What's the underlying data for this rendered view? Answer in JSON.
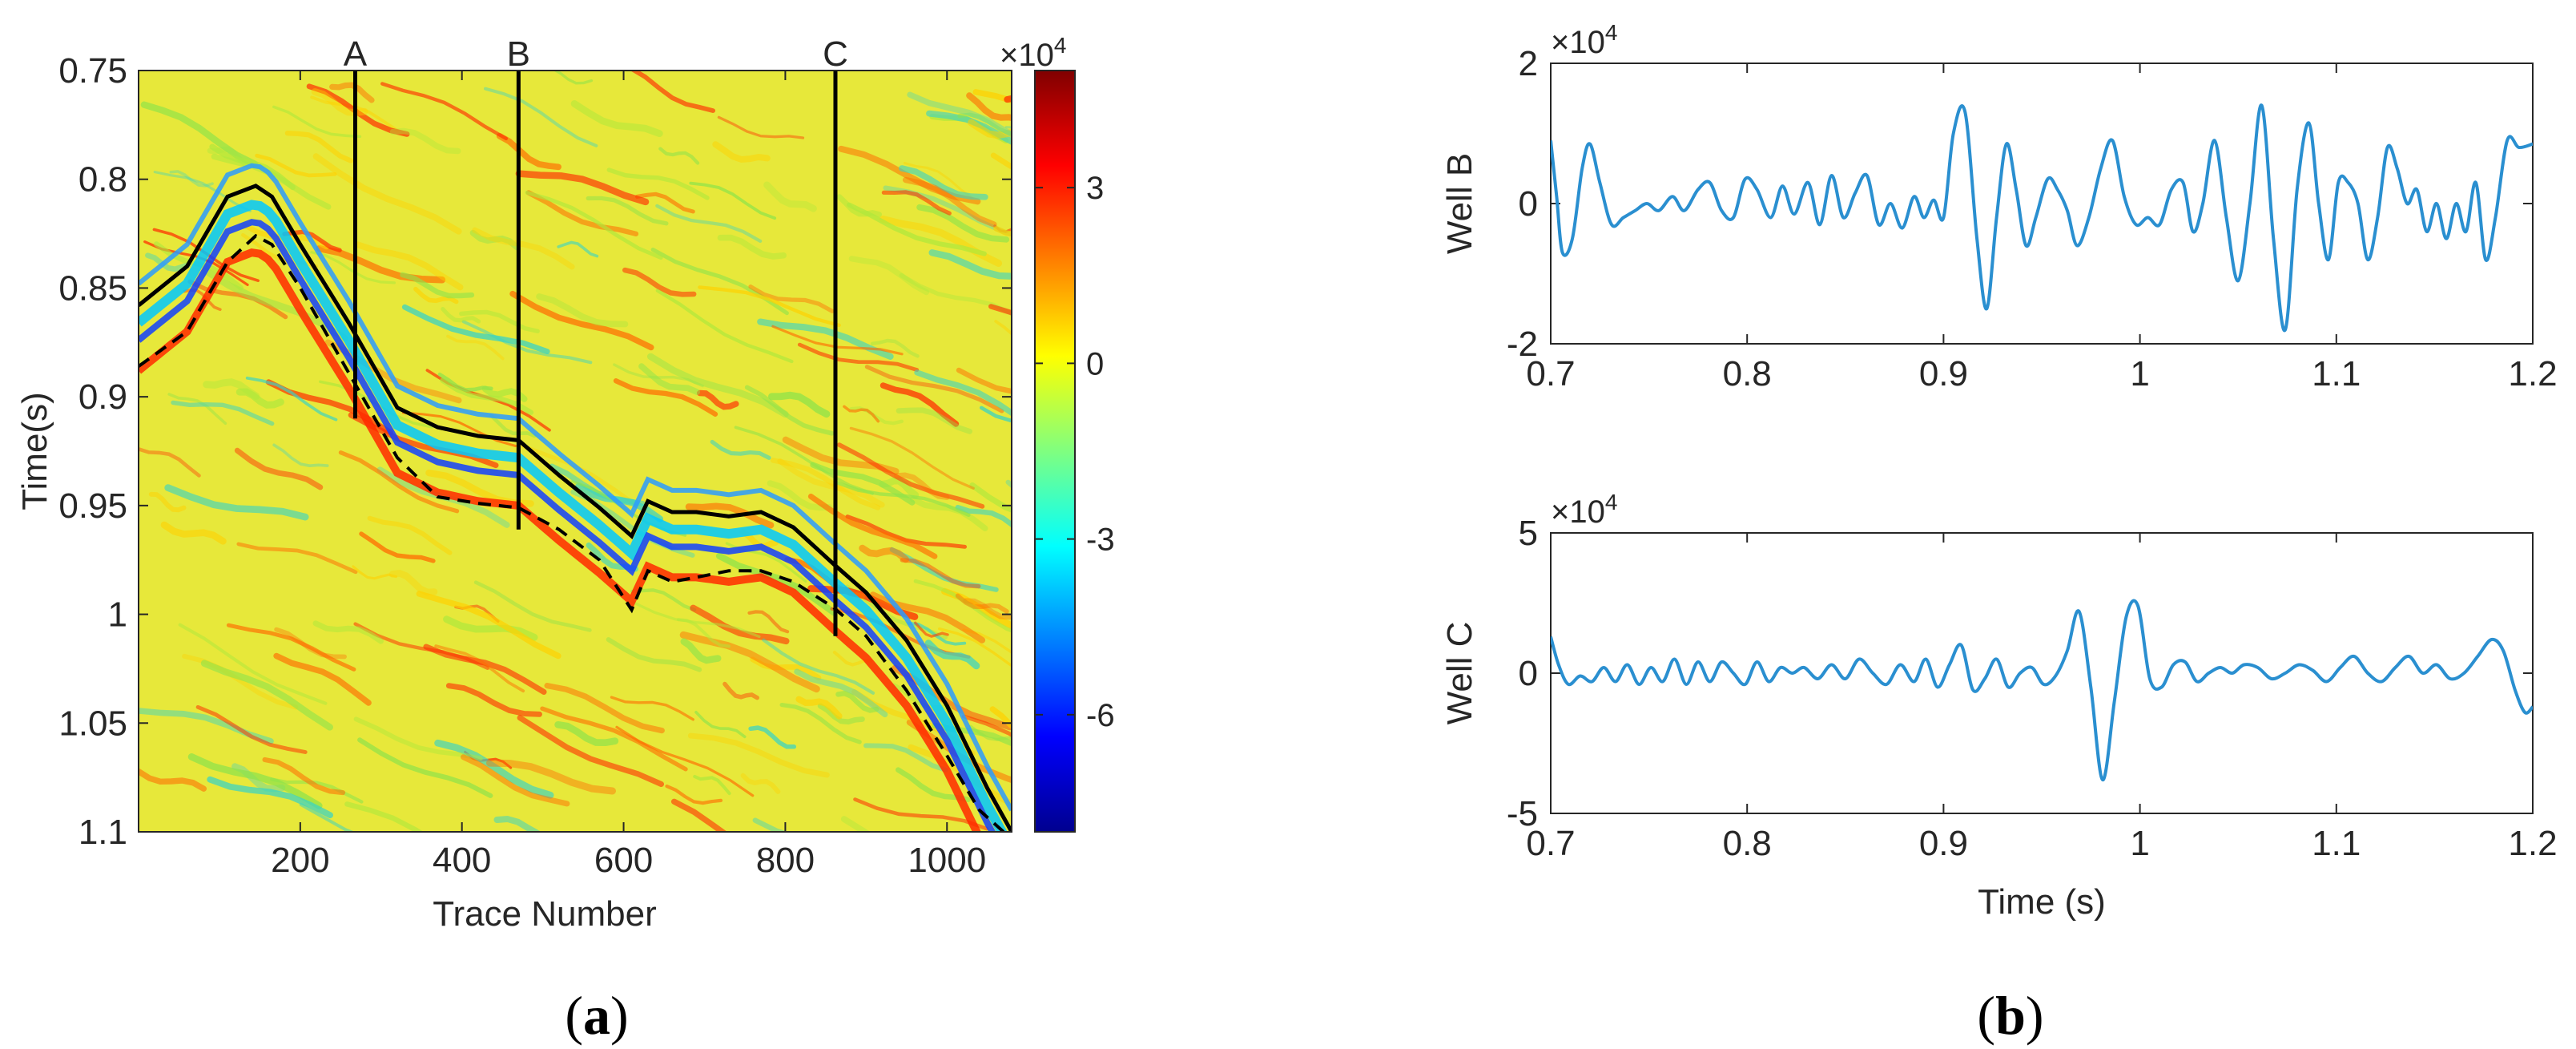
{
  "panel_a": {
    "label_open": "(",
    "label_letter": "a",
    "label_close": ")"
  },
  "panel_b": {
    "label_open": "(",
    "label_letter": "b",
    "label_close": ")"
  },
  "colors": {
    "wiggle": "#2a8fd0",
    "axis": "#262626",
    "horizon": "#000000"
  },
  "chart_data": [
    {
      "type": "heatmap",
      "title": "",
      "xlabel": "Trace Number",
      "ylabel": "Time(s)",
      "xlim": [
        0,
        1080
      ],
      "ylim": [
        1.1,
        0.75
      ],
      "x_ticks": [
        200,
        400,
        600,
        800,
        1000
      ],
      "x_tick_labels": [
        "200",
        "400",
        "600",
        "800",
        "1000"
      ],
      "y_ticks": [
        0.75,
        0.8,
        0.85,
        0.9,
        0.95,
        1.0,
        1.05,
        1.1
      ],
      "y_tick_labels": [
        "0.75",
        "0.8",
        "0.85",
        "0.9",
        "0.95",
        "1",
        "1.05",
        "1.1"
      ],
      "colormap": "jet",
      "colorbar": {
        "range": [
          -8,
          5
        ],
        "ticks": [
          -6,
          -3,
          0,
          3
        ],
        "tick_labels": [
          "-6",
          "-3",
          "0",
          "3"
        ],
        "exponent_base": "×10",
        "exponent_power": "4"
      },
      "wells": [
        {
          "name": "A",
          "trace": 268,
          "t_end": 0.91
        },
        {
          "name": "B",
          "trace": 470,
          "t_end": 0.961
        },
        {
          "name": "C",
          "trace": 862,
          "t_end": 1.01
        }
      ],
      "horizon_solid": {
        "trace": [
          0,
          60,
          110,
          145,
          165,
          200,
          260,
          320,
          370,
          420,
          470,
          520,
          570,
          610,
          630,
          660,
          690,
          730,
          770,
          810,
          860,
          900,
          950,
          1000,
          1050,
          1080
        ],
        "time": [
          0.858,
          0.84,
          0.808,
          0.803,
          0.808,
          0.83,
          0.866,
          0.905,
          0.914,
          0.918,
          0.92,
          0.936,
          0.951,
          0.964,
          0.948,
          0.953,
          0.953,
          0.955,
          0.953,
          0.96,
          0.977,
          0.99,
          1.012,
          1.042,
          1.08,
          1.1
        ]
      },
      "horizon_dashed": {
        "trace": [
          0,
          60,
          110,
          145,
          165,
          200,
          260,
          320,
          370,
          420,
          470,
          520,
          570,
          610,
          630,
          660,
          690,
          730,
          770,
          810,
          860,
          900,
          950,
          1000,
          1040,
          1070
        ],
        "time": [
          0.886,
          0.87,
          0.838,
          0.826,
          0.83,
          0.85,
          0.889,
          0.928,
          0.946,
          0.949,
          0.951,
          0.961,
          0.975,
          0.998,
          0.98,
          0.985,
          0.983,
          0.98,
          0.98,
          0.985,
          0.997,
          1.01,
          1.035,
          1.065,
          1.09,
          1.1
        ]
      }
    },
    {
      "type": "line",
      "title": "",
      "xlabel": "",
      "ylabel": "Well B",
      "xlim": [
        0.7,
        1.2
      ],
      "ylim": [
        -2,
        2
      ],
      "x_ticks": [
        0.7,
        0.8,
        0.9,
        1.0,
        1.1,
        1.2
      ],
      "x_tick_labels": [
        "0.7",
        "0.8",
        "0.9",
        "1",
        "1.1",
        "1.2"
      ],
      "y_ticks": [
        -2,
        0,
        2
      ],
      "y_tick_labels": [
        "-2",
        "0",
        "2"
      ],
      "exponent_base": "×10",
      "exponent_power": "4",
      "series": [
        {
          "name": "Well B",
          "x": [
            0.7,
            0.703,
            0.706,
            0.711,
            0.716,
            0.72,
            0.725,
            0.731,
            0.737,
            0.743,
            0.749,
            0.755,
            0.762,
            0.768,
            0.775,
            0.781,
            0.787,
            0.793,
            0.799,
            0.805,
            0.812,
            0.818,
            0.824,
            0.831,
            0.837,
            0.843,
            0.849,
            0.855,
            0.861,
            0.867,
            0.873,
            0.879,
            0.885,
            0.89,
            0.895,
            0.9,
            0.905,
            0.911,
            0.917,
            0.922,
            0.927,
            0.932,
            0.937,
            0.942,
            0.947,
            0.953,
            0.958,
            0.963,
            0.968,
            0.974,
            0.98,
            0.986,
            0.992,
            0.998,
            1.004,
            1.01,
            1.016,
            1.022,
            1.027,
            1.032,
            1.038,
            1.044,
            1.05,
            1.056,
            1.062,
            1.068,
            1.074,
            1.08,
            1.086,
            1.091,
            1.096,
            1.101,
            1.106,
            1.111,
            1.116,
            1.121,
            1.126,
            1.131,
            1.136,
            1.141,
            1.146,
            1.151,
            1.156,
            1.161,
            1.166,
            1.171,
            1.176,
            1.181,
            1.187,
            1.193,
            1.2
          ],
          "y": [
            0.9,
            0.1,
            -0.7,
            -0.5,
            0.5,
            0.85,
            0.3,
            -0.3,
            -0.2,
            -0.1,
            0.0,
            -0.1,
            0.1,
            -0.1,
            0.2,
            0.3,
            -0.1,
            -0.2,
            0.35,
            0.2,
            -0.2,
            0.25,
            -0.15,
            0.3,
            -0.3,
            0.4,
            -0.2,
            0.15,
            0.4,
            -0.3,
            0.0,
            -0.35,
            0.1,
            -0.2,
            0.05,
            -0.2,
            1.0,
            1.3,
            -0.5,
            -1.5,
            -0.2,
            0.85,
            0.2,
            -0.6,
            -0.2,
            0.35,
            0.2,
            -0.1,
            -0.6,
            -0.2,
            0.5,
            0.9,
            0.1,
            -0.3,
            -0.2,
            -0.3,
            0.2,
            0.3,
            -0.4,
            0.0,
            0.9,
            -0.2,
            -1.1,
            0.0,
            1.4,
            -0.5,
            -1.8,
            0.2,
            1.15,
            0.0,
            -0.8,
            0.3,
            0.3,
            0.0,
            -0.8,
            -0.2,
            0.8,
            0.5,
            0.0,
            0.2,
            -0.4,
            0.0,
            -0.5,
            0.0,
            -0.4,
            0.3,
            -0.8,
            -0.2,
            0.9,
            0.8,
            0.85
          ]
        }
      ]
    },
    {
      "type": "line",
      "title": "",
      "xlabel": "Time (s)",
      "ylabel": "Well C",
      "xlim": [
        0.7,
        1.2
      ],
      "ylim": [
        -5,
        5
      ],
      "x_ticks": [
        0.7,
        0.8,
        0.9,
        1.0,
        1.1,
        1.2
      ],
      "x_tick_labels": [
        "0.7",
        "0.8",
        "0.9",
        "1",
        "1.1",
        "1.2"
      ],
      "y_ticks": [
        -5,
        0,
        5
      ],
      "y_tick_labels": [
        "-5",
        "0",
        "5"
      ],
      "exponent_base": "×10",
      "exponent_power": "4",
      "series": [
        {
          "name": "Well C",
          "x": [
            0.7,
            0.704,
            0.709,
            0.715,
            0.721,
            0.727,
            0.733,
            0.739,
            0.745,
            0.751,
            0.757,
            0.763,
            0.769,
            0.775,
            0.781,
            0.787,
            0.793,
            0.799,
            0.805,
            0.811,
            0.817,
            0.823,
            0.829,
            0.836,
            0.843,
            0.85,
            0.857,
            0.864,
            0.871,
            0.878,
            0.885,
            0.891,
            0.897,
            0.903,
            0.909,
            0.915,
            0.921,
            0.927,
            0.933,
            0.939,
            0.945,
            0.951,
            0.957,
            0.963,
            0.969,
            0.975,
            0.981,
            0.987,
            0.993,
            0.999,
            1.005,
            1.011,
            1.017,
            1.023,
            1.029,
            1.035,
            1.041,
            1.047,
            1.053,
            1.06,
            1.067,
            1.074,
            1.081,
            1.088,
            1.095,
            1.102,
            1.109,
            1.116,
            1.123,
            1.13,
            1.137,
            1.144,
            1.151,
            1.158,
            1.165,
            1.172,
            1.179,
            1.185,
            1.191,
            1.196,
            1.2
          ],
          "y": [
            1.3,
            0.3,
            -0.4,
            -0.1,
            -0.3,
            0.2,
            -0.3,
            0.3,
            -0.4,
            0.2,
            -0.3,
            0.5,
            -0.4,
            0.4,
            -0.3,
            0.4,
            0.0,
            -0.4,
            0.4,
            -0.3,
            0.2,
            0.0,
            0.2,
            -0.2,
            0.3,
            -0.2,
            0.5,
            0.0,
            -0.4,
            0.3,
            -0.3,
            0.5,
            -0.5,
            0.3,
            1.0,
            -0.6,
            -0.2,
            0.5,
            -0.5,
            0.0,
            0.2,
            -0.4,
            -0.1,
            0.8,
            2.2,
            -0.5,
            -3.8,
            -1.0,
            2.0,
            2.4,
            -0.2,
            -0.5,
            0.3,
            0.4,
            -0.3,
            0.0,
            0.2,
            0.0,
            0.3,
            0.2,
            -0.2,
            0.0,
            0.3,
            0.1,
            -0.3,
            0.2,
            0.6,
            0.0,
            -0.3,
            0.2,
            0.6,
            0.0,
            0.3,
            -0.2,
            0.0,
            0.6,
            1.2,
            0.8,
            -0.6,
            -1.4,
            -1.2
          ]
        }
      ]
    }
  ]
}
